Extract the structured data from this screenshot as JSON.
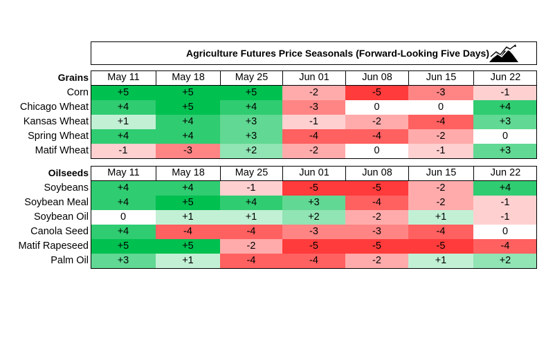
{
  "title": "Agriculture Futures Price Seasonals (Forward-Looking Five Days)",
  "icon": "mountain-chart-icon",
  "chart_data": {
    "type": "heatmap",
    "columns": [
      "May 11",
      "May 18",
      "May 25",
      "Jun 01",
      "Jun 08",
      "Jun 15",
      "Jun 22"
    ],
    "color_scale": {
      "min": -5,
      "max": 5,
      "negative": "#ff3b3b",
      "neutral": "#ffffff",
      "positive": "#00c050"
    },
    "sections": [
      {
        "name": "Grains",
        "rows": [
          {
            "label": "Corn",
            "values": [
              "+5",
              "+5",
              "+5",
              "-2",
              "-5",
              "-3",
              "-1"
            ]
          },
          {
            "label": "Chicago Wheat",
            "values": [
              "+4",
              "+5",
              "+4",
              "-3",
              "0",
              "0",
              "+4"
            ]
          },
          {
            "label": "Kansas Wheat",
            "values": [
              "+1",
              "+4",
              "+3",
              "-1",
              "-2",
              "-4",
              "+3"
            ]
          },
          {
            "label": "Spring Wheat",
            "values": [
              "+4",
              "+4",
              "+3",
              "-4",
              "-4",
              "-2",
              "0"
            ]
          },
          {
            "label": "Matif Wheat",
            "values": [
              "-1",
              "-3",
              "+2",
              "-2",
              "0",
              "-1",
              "+3"
            ]
          }
        ]
      },
      {
        "name": "Oilseeds",
        "rows": [
          {
            "label": "Soybeans",
            "values": [
              "+4",
              "+4",
              "-1",
              "-5",
              "-5",
              "-2",
              "+4"
            ]
          },
          {
            "label": "Soybean Meal",
            "values": [
              "+4",
              "+5",
              "+4",
              "+3",
              "-4",
              "-2",
              "-1"
            ]
          },
          {
            "label": "Soybean Oil",
            "values": [
              "0",
              "+1",
              "+1",
              "+2",
              "-2",
              "+1",
              "-1"
            ]
          },
          {
            "label": "Canola Seed",
            "values": [
              "+4",
              "-4",
              "-4",
              "-3",
              "-3",
              "-4",
              "0"
            ]
          },
          {
            "label": "Matif Rapeseed",
            "values": [
              "+5",
              "+5",
              "-2",
              "-5",
              "-5",
              "-5",
              "-4"
            ]
          },
          {
            "label": "Palm Oil",
            "values": [
              "+3",
              "+1",
              "-4",
              "-4",
              "-2",
              "+1",
              "+2"
            ]
          }
        ]
      }
    ]
  }
}
